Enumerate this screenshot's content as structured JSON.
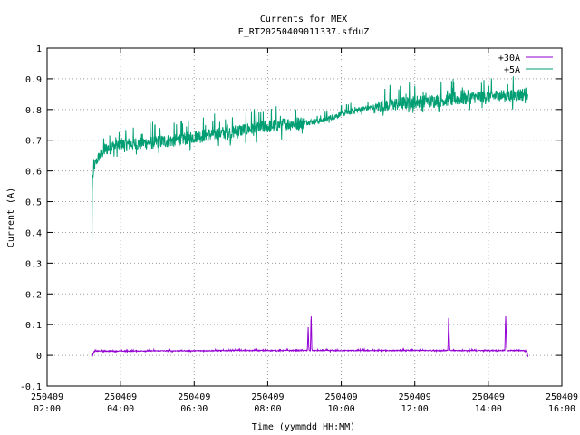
{
  "chart_data": {
    "type": "line",
    "title": "Currents for MEX",
    "subtitle": "E_RT20250409011337.sfduZ",
    "xlabel": "Time (yymmdd HH:MM)",
    "ylabel": "Current (A)",
    "xlim": [
      "250409 02:00",
      "250409 16:00"
    ],
    "ylim": [
      -0.1,
      1.0
    ],
    "grid": true,
    "legend_position": "top-right",
    "x_ticks": [
      {
        "date": "250409",
        "time": "02:00",
        "hours": 2
      },
      {
        "date": "250409",
        "time": "04:00",
        "hours": 4
      },
      {
        "date": "250409",
        "time": "06:00",
        "hours": 6
      },
      {
        "date": "250409",
        "time": "08:00",
        "hours": 8
      },
      {
        "date": "250409",
        "time": "10:00",
        "hours": 10
      },
      {
        "date": "250409",
        "time": "12:00",
        "hours": 12
      },
      {
        "date": "250409",
        "time": "14:00",
        "hours": 14
      },
      {
        "date": "250409",
        "time": "16:00",
        "hours": 16
      }
    ],
    "y_ticks": [
      {
        "value": -0.1,
        "label": "-0.1"
      },
      {
        "value": 0,
        "label": "0"
      },
      {
        "value": 0.1,
        "label": "0.1"
      },
      {
        "value": 0.2,
        "label": "0.2"
      },
      {
        "value": 0.3,
        "label": "0.3"
      },
      {
        "value": 0.4,
        "label": "0.4"
      },
      {
        "value": 0.5,
        "label": "0.5"
      },
      {
        "value": 0.6,
        "label": "0.6"
      },
      {
        "value": 0.7,
        "label": "0.7"
      },
      {
        "value": 0.8,
        "label": "0.8"
      },
      {
        "value": 0.9,
        "label": "0.9"
      },
      {
        "value": 1,
        "label": "1"
      }
    ],
    "series": [
      {
        "name": "+30A",
        "color": "#9400d3",
        "x_hours": [
          3.22,
          3.28,
          3.32,
          4.0,
          5.0,
          6.0,
          7.0,
          8.0,
          9.0,
          9.08,
          9.1,
          9.12,
          9.16,
          9.18,
          9.2,
          10.0,
          11.0,
          12.0,
          12.8,
          12.9,
          12.92,
          12.95,
          13.0,
          14.0,
          14.4,
          14.45,
          14.47,
          14.5,
          14.8,
          14.95,
          15.05,
          15.08
        ],
        "y": [
          -0.005,
          0.013,
          0.014,
          0.014,
          0.015,
          0.015,
          0.016,
          0.016,
          0.016,
          0.016,
          0.095,
          0.016,
          0.016,
          0.145,
          0.016,
          0.016,
          0.016,
          0.016,
          0.016,
          0.016,
          0.12,
          0.016,
          0.016,
          0.016,
          0.016,
          0.016,
          0.135,
          0.016,
          0.016,
          0.016,
          0.012,
          -0.005
        ],
        "noise": 0.003
      },
      {
        "name": "+5A",
        "color": "#009e73",
        "x_hours": [
          3.22,
          3.23,
          3.25,
          3.3,
          3.4,
          3.5,
          3.6,
          3.8,
          4.0,
          4.5,
          5.0,
          5.5,
          6.0,
          6.5,
          7.0,
          7.5,
          8.0,
          8.5,
          9.0,
          9.5,
          10.0,
          10.5,
          11.0,
          11.5,
          12.0,
          12.5,
          13.0,
          13.5,
          14.0,
          14.5,
          15.0,
          15.08
        ],
        "y": [
          0.36,
          0.57,
          0.585,
          0.62,
          0.645,
          0.66,
          0.672,
          0.68,
          0.685,
          0.69,
          0.695,
          0.7,
          0.712,
          0.72,
          0.727,
          0.737,
          0.745,
          0.753,
          0.757,
          0.765,
          0.785,
          0.8,
          0.81,
          0.818,
          0.825,
          0.828,
          0.833,
          0.838,
          0.843,
          0.845,
          0.85,
          0.848
        ],
        "noise": 0.035,
        "noise_amplitude": [
          {
            "from_hours": 3.5,
            "to_hours": 9.0,
            "amplitude": 0.045
          },
          {
            "from_hours": 9.0,
            "to_hours": 11.0,
            "amplitude": 0.02
          },
          {
            "from_hours": 11.0,
            "to_hours": 15.1,
            "amplitude": 0.045
          }
        ]
      }
    ]
  }
}
